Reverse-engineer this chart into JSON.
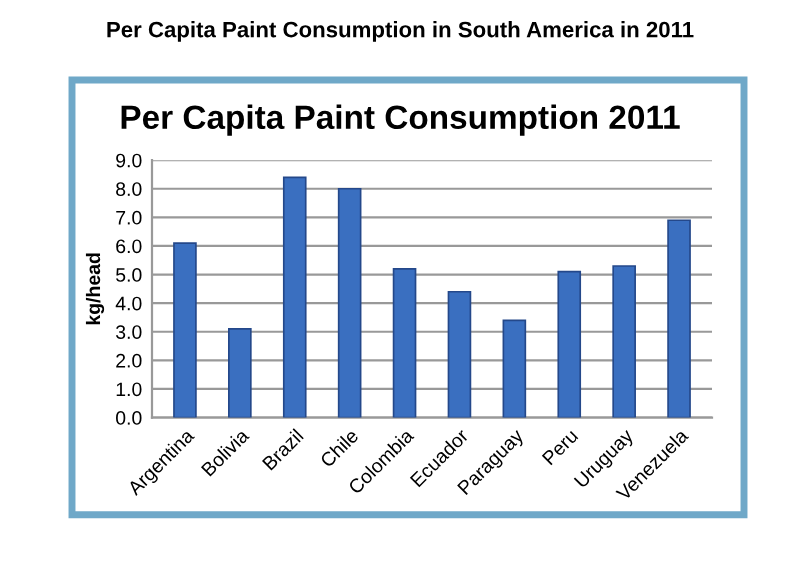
{
  "chart_data": {
    "type": "bar",
    "title": "Per Capita Paint Consumption in South America in 2011",
    "subtitle": "Per Capita Paint Consumption 2011",
    "ylabel": "kg/head",
    "categories": [
      "Argentina",
      "Bolivia",
      "Brazil",
      "Chile",
      "Colombia",
      "Ecuador",
      "Paraguay",
      "Peru",
      "Uruguay",
      "Venezuela"
    ],
    "values": [
      6.1,
      3.1,
      8.4,
      8.0,
      5.2,
      4.4,
      3.4,
      5.1,
      5.3,
      6.9
    ],
    "color": "#3a6fc0",
    "ylim": [
      0,
      9
    ],
    "yticks": [
      {
        "value": 0,
        "label": "0.0"
      },
      {
        "value": 1,
        "label": "1.0"
      },
      {
        "value": 2,
        "label": "2.0"
      },
      {
        "value": 3,
        "label": "3.0"
      },
      {
        "value": 4,
        "label": "4.0"
      },
      {
        "value": 5,
        "label": "5.0"
      },
      {
        "value": 6,
        "label": "6.0"
      },
      {
        "value": 7,
        "label": "7.0"
      },
      {
        "value": 8,
        "label": "8.0"
      },
      {
        "value": 9,
        "label": "9.0"
      }
    ],
    "grid": "y"
  }
}
